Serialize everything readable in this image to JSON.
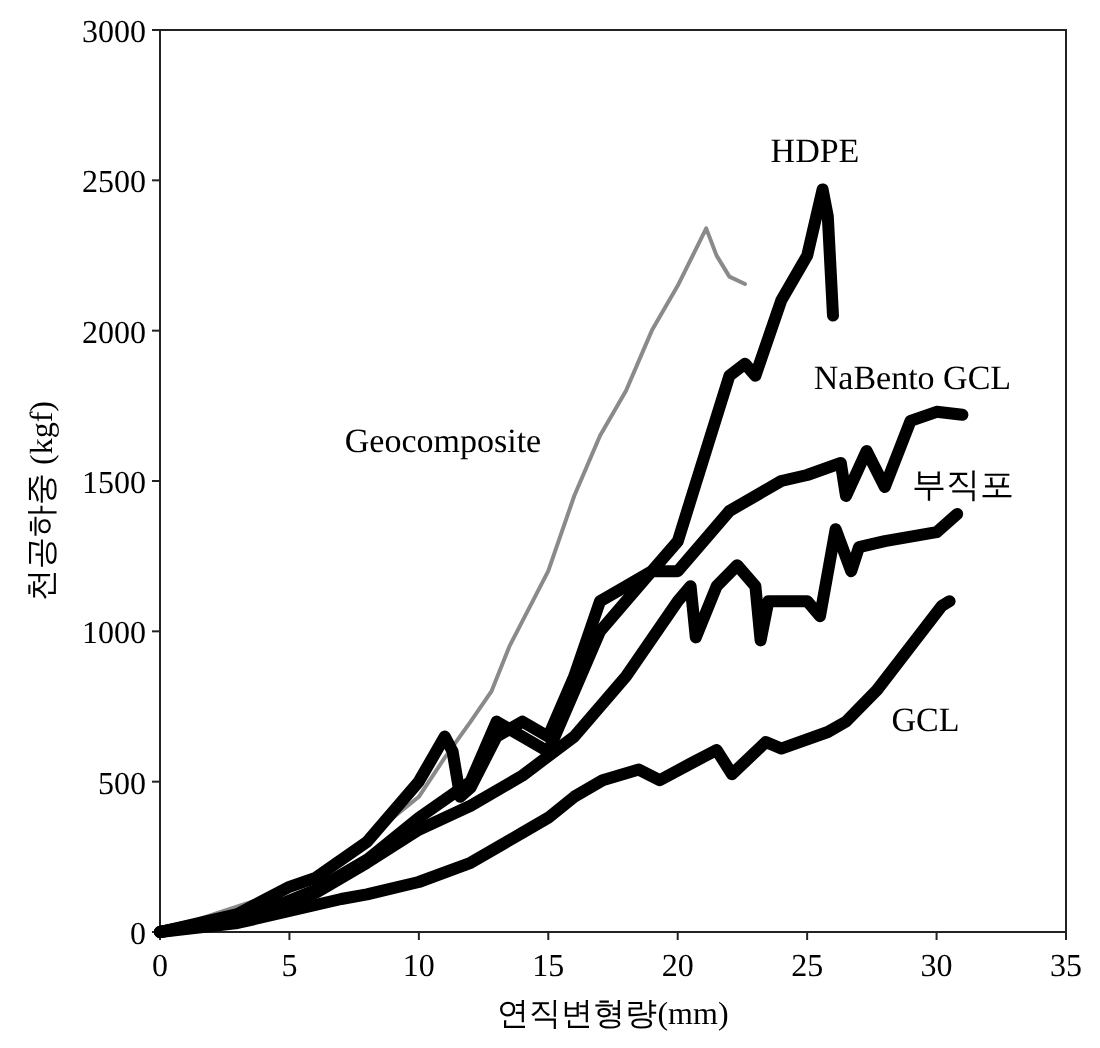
{
  "chart_data": {
    "type": "line",
    "xlabel": "연직변형량(mm)",
    "ylabel": "천공하중 (kgf)",
    "xlim": [
      0,
      35
    ],
    "ylim": [
      0,
      3000
    ],
    "xticks": [
      0,
      5,
      10,
      15,
      20,
      25,
      30,
      35
    ],
    "yticks": [
      0,
      500,
      1000,
      1500,
      2000,
      2500,
      3000
    ],
    "grid": false,
    "legend": false,
    "marker": "none",
    "line_style": "solid",
    "series": [
      {
        "name": "Geocomposite",
        "color": "#8a8a8a",
        "x": [
          0,
          6,
          8,
          9,
          10,
          11,
          12,
          12.8,
          13.5,
          15,
          16,
          17,
          18,
          19,
          20,
          21.1,
          21.5,
          22,
          22.6
        ],
        "values": [
          0,
          170,
          300,
          380,
          450,
          580,
          700,
          800,
          950,
          1200,
          1450,
          1650,
          1800,
          2000,
          2150,
          2340,
          2250,
          2180,
          2155
        ]
      },
      {
        "name": "HDPE",
        "color": "#000000",
        "x": [
          0,
          3,
          5,
          6,
          8,
          10,
          11,
          11.3,
          11.6,
          12,
          13,
          14,
          15,
          16,
          17,
          18,
          19,
          20,
          20.6,
          22,
          22.6,
          23,
          24,
          25,
          25.6,
          25.8,
          26
        ],
        "values": [
          0,
          60,
          150,
          180,
          300,
          500,
          650,
          600,
          450,
          480,
          650,
          700,
          650,
          850,
          1100,
          1150,
          1200,
          1300,
          1464,
          1850,
          1890,
          1850,
          2100,
          2250,
          2470,
          2380,
          2050
        ]
      },
      {
        "name": "NaBento GCL",
        "color": "#000000",
        "x": [
          0,
          4,
          6,
          8,
          10,
          12,
          13,
          14,
          15,
          16,
          17,
          18,
          19,
          20,
          21,
          22,
          23,
          24,
          25,
          26.3,
          26.5,
          27.3,
          28,
          29,
          30,
          31
        ],
        "values": [
          0,
          70,
          140,
          240,
          380,
          500,
          700,
          650,
          600,
          800,
          1000,
          1100,
          1200,
          1200,
          1300,
          1400,
          1450,
          1500,
          1520,
          1560,
          1450,
          1600,
          1480,
          1700,
          1730,
          1720
        ]
      },
      {
        "name": "부직포",
        "color": "#000000",
        "x": [
          0,
          4,
          6,
          8,
          10,
          12,
          14,
          16,
          18,
          20,
          20.5,
          20.7,
          21.5,
          22.3,
          23,
          23.2,
          23.5,
          25,
          25.5,
          26.1,
          26.7,
          27,
          28,
          30,
          30.8
        ],
        "values": [
          0,
          60,
          130,
          230,
          340,
          420,
          520,
          650,
          850,
          1100,
          1150,
          980,
          1150,
          1220,
          1150,
          970,
          1100,
          1100,
          1050,
          1340,
          1200,
          1280,
          1300,
          1330,
          1390
        ]
      },
      {
        "name": "GCL",
        "color": "#000000",
        "x": [
          0,
          3,
          5,
          7,
          8,
          10,
          12,
          14,
          15,
          16,
          17.1,
          18.5,
          19.3,
          20.5,
          21.5,
          22.1,
          23.4,
          24,
          25.8,
          26.5,
          27.7,
          29,
          30.2,
          30.5
        ],
        "values": [
          0,
          30,
          70,
          110,
          125,
          166,
          230,
          330,
          380,
          450,
          505,
          540,
          505,
          560,
          605,
          525,
          632,
          610,
          665,
          700,
          805,
          950,
          1085,
          1100
        ]
      }
    ]
  }
}
